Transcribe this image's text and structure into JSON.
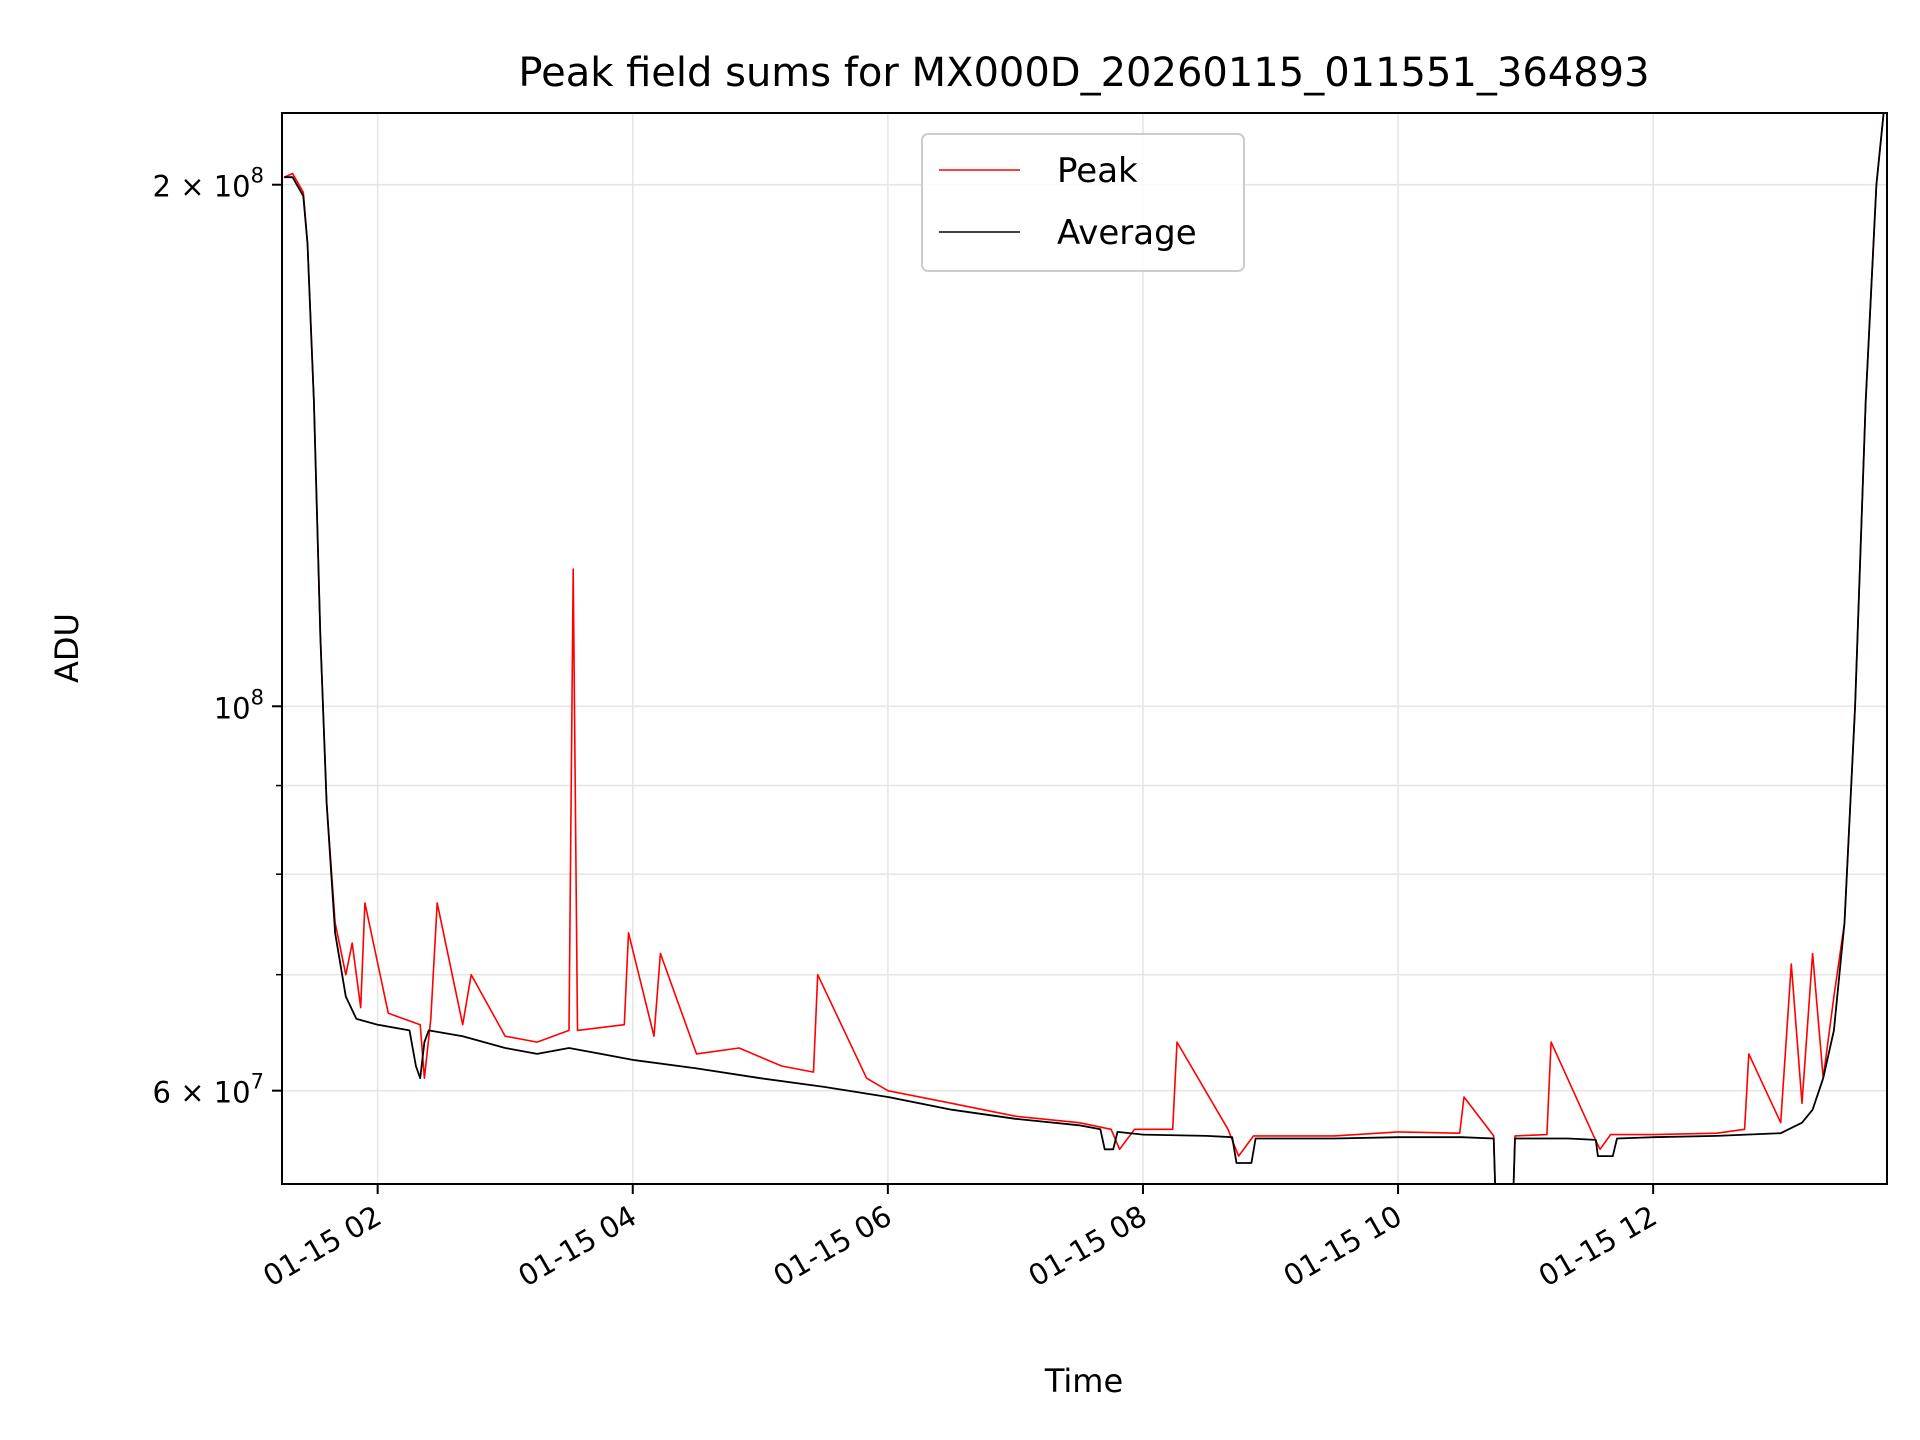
{
  "chart_data": {
    "type": "line",
    "title": "Peak field sums for MX000D_20260115_011551_364893",
    "xlabel": "Time",
    "ylabel": "ADU",
    "yscale": "log",
    "grid": true,
    "legend_position": "top-center",
    "xlim": [
      "2026-01-15 01:15",
      "2026-01-15 13:50"
    ],
    "ylim": [
      53000000,
      220000000
    ],
    "x_ticks": [
      "01-15 02",
      "01-15 04",
      "01-15 06",
      "01-15 08",
      "01-15 10",
      "01-15 12"
    ],
    "x_tick_values": [
      "2026-01-15 02:00",
      "2026-01-15 04:00",
      "2026-01-15 06:00",
      "2026-01-15 08:00",
      "2026-01-15 10:00",
      "2026-01-15 12:00"
    ],
    "y_major_ticks": [
      {
        "value": 200000000,
        "base": "2 × 10",
        "exp": "8"
      },
      {
        "value": 100000000,
        "base": "10",
        "exp": "8"
      },
      {
        "value": 60000000,
        "base": "6 × 10",
        "exp": "7"
      }
    ],
    "y_minor_ticks": [
      70000000,
      80000000,
      90000000
    ],
    "series": [
      {
        "name": "Peak",
        "color": "#ff0000",
        "x": [
          "2026-01-15 01:16",
          "2026-01-15 01:20",
          "2026-01-15 01:25",
          "2026-01-15 01:27",
          "2026-01-15 01:30",
          "2026-01-15 01:33",
          "2026-01-15 01:36",
          "2026-01-15 01:40",
          "2026-01-15 01:45",
          "2026-01-15 01:48",
          "2026-01-15 01:52",
          "2026-01-15 01:54",
          "2026-01-15 02:05",
          "2026-01-15 02:20",
          "2026-01-15 02:22",
          "2026-01-15 02:25",
          "2026-01-15 02:28",
          "2026-01-15 02:40",
          "2026-01-15 02:44",
          "2026-01-15 03:00",
          "2026-01-15 03:15",
          "2026-01-15 03:30",
          "2026-01-15 03:32",
          "2026-01-15 03:34",
          "2026-01-15 03:56",
          "2026-01-15 03:58",
          "2026-01-15 04:10",
          "2026-01-15 04:13",
          "2026-01-15 04:30",
          "2026-01-15 04:50",
          "2026-01-15 05:10",
          "2026-01-15 05:25",
          "2026-01-15 05:27",
          "2026-01-15 05:50",
          "2026-01-15 06:00",
          "2026-01-15 06:30",
          "2026-01-15 07:00",
          "2026-01-15 07:30",
          "2026-01-15 07:45",
          "2026-01-15 07:49",
          "2026-01-15 07:56",
          "2026-01-15 08:14",
          "2026-01-15 08:16",
          "2026-01-15 08:40",
          "2026-01-15 08:45",
          "2026-01-15 08:52",
          "2026-01-15 09:30",
          "2026-01-15 10:00",
          "2026-01-15 10:29",
          "2026-01-15 10:31",
          "2026-01-15 10:45",
          "2026-01-15 10:46",
          "2026-01-15 10:54",
          "2026-01-15 10:55",
          "2026-01-15 11:10",
          "2026-01-15 11:12",
          "2026-01-15 11:32",
          "2026-01-15 11:35",
          "2026-01-15 11:40",
          "2026-01-15 11:43",
          "2026-01-15 12:00",
          "2026-01-15 12:30",
          "2026-01-15 12:43",
          "2026-01-15 12:45",
          "2026-01-15 13:00",
          "2026-01-15 13:05",
          "2026-01-15 13:10",
          "2026-01-15 13:15",
          "2026-01-15 13:20",
          "2026-01-15 13:25",
          "2026-01-15 13:30",
          "2026-01-15 13:35",
          "2026-01-15 13:40",
          "2026-01-15 13:45",
          "2026-01-15 13:50"
        ],
        "y": [
          202000000,
          203000000,
          198000000,
          185000000,
          150000000,
          110000000,
          88000000,
          75000000,
          70000000,
          73000000,
          67000000,
          77000000,
          66500000,
          65500000,
          61000000,
          66000000,
          77000000,
          65500000,
          70000000,
          64500000,
          64000000,
          65000000,
          120000000,
          65000000,
          65500000,
          74000000,
          64500000,
          72000000,
          63000000,
          63500000,
          62000000,
          61500000,
          70000000,
          61000000,
          60000000,
          59000000,
          58000000,
          57500000,
          57000000,
          55500000,
          57000000,
          57000000,
          64000000,
          57000000,
          55000000,
          56500000,
          56500000,
          56800000,
          56700000,
          59500000,
          56500000,
          51000000,
          51000000,
          56500000,
          56600000,
          64000000,
          56500000,
          55500000,
          56600000,
          56600000,
          56600000,
          56700000,
          57000000,
          63000000,
          57500000,
          71000000,
          59000000,
          72000000,
          61000000,
          68000000,
          75000000,
          100000000,
          150000000,
          200000000,
          230000000
        ]
      },
      {
        "name": "Average",
        "color": "#000000",
        "x": [
          "2026-01-15 01:16",
          "2026-01-15 01:20",
          "2026-01-15 01:25",
          "2026-01-15 01:27",
          "2026-01-15 01:30",
          "2026-01-15 01:33",
          "2026-01-15 01:36",
          "2026-01-15 01:40",
          "2026-01-15 01:45",
          "2026-01-15 01:50",
          "2026-01-15 02:00",
          "2026-01-15 02:15",
          "2026-01-15 02:18",
          "2026-01-15 02:20",
          "2026-01-15 02:22",
          "2026-01-15 02:24",
          "2026-01-15 02:40",
          "2026-01-15 03:00",
          "2026-01-15 03:15",
          "2026-01-15 03:30",
          "2026-01-15 03:45",
          "2026-01-15 04:00",
          "2026-01-15 04:30",
          "2026-01-15 05:00",
          "2026-01-15 05:30",
          "2026-01-15 06:00",
          "2026-01-15 06:30",
          "2026-01-15 07:00",
          "2026-01-15 07:30",
          "2026-01-15 07:40",
          "2026-01-15 07:42",
          "2026-01-15 07:46",
          "2026-01-15 07:48",
          "2026-01-15 08:00",
          "2026-01-15 08:30",
          "2026-01-15 08:42",
          "2026-01-15 08:44",
          "2026-01-15 08:51",
          "2026-01-15 08:53",
          "2026-01-15 09:30",
          "2026-01-15 10:00",
          "2026-01-15 10:30",
          "2026-01-15 10:45",
          "2026-01-15 10:46",
          "2026-01-15 10:54",
          "2026-01-15 10:55",
          "2026-01-15 11:20",
          "2026-01-15 11:33",
          "2026-01-15 11:34",
          "2026-01-15 11:41",
          "2026-01-15 11:43",
          "2026-01-15 12:00",
          "2026-01-15 12:30",
          "2026-01-15 13:00",
          "2026-01-15 13:10",
          "2026-01-15 13:15",
          "2026-01-15 13:20",
          "2026-01-15 13:25",
          "2026-01-15 13:30",
          "2026-01-15 13:35",
          "2026-01-15 13:40",
          "2026-01-15 13:45",
          "2026-01-15 13:50"
        ],
        "y": [
          202000000,
          202000000,
          197000000,
          185000000,
          150000000,
          110000000,
          88000000,
          74000000,
          68000000,
          66000000,
          65500000,
          65000000,
          62000000,
          61000000,
          64000000,
          65000000,
          64500000,
          63500000,
          63000000,
          63500000,
          63000000,
          62500000,
          61800000,
          61000000,
          60300000,
          59500000,
          58500000,
          57800000,
          57300000,
          57000000,
          55500000,
          55500000,
          56800000,
          56600000,
          56500000,
          56400000,
          54500000,
          54500000,
          56300000,
          56300000,
          56400000,
          56400000,
          56300000,
          51500000,
          51500000,
          56300000,
          56300000,
          56200000,
          55000000,
          55000000,
          56300000,
          56400000,
          56500000,
          56700000,
          57500000,
          58500000,
          61000000,
          65000000,
          75000000,
          100000000,
          150000000,
          200000000,
          230000000
        ]
      }
    ]
  }
}
